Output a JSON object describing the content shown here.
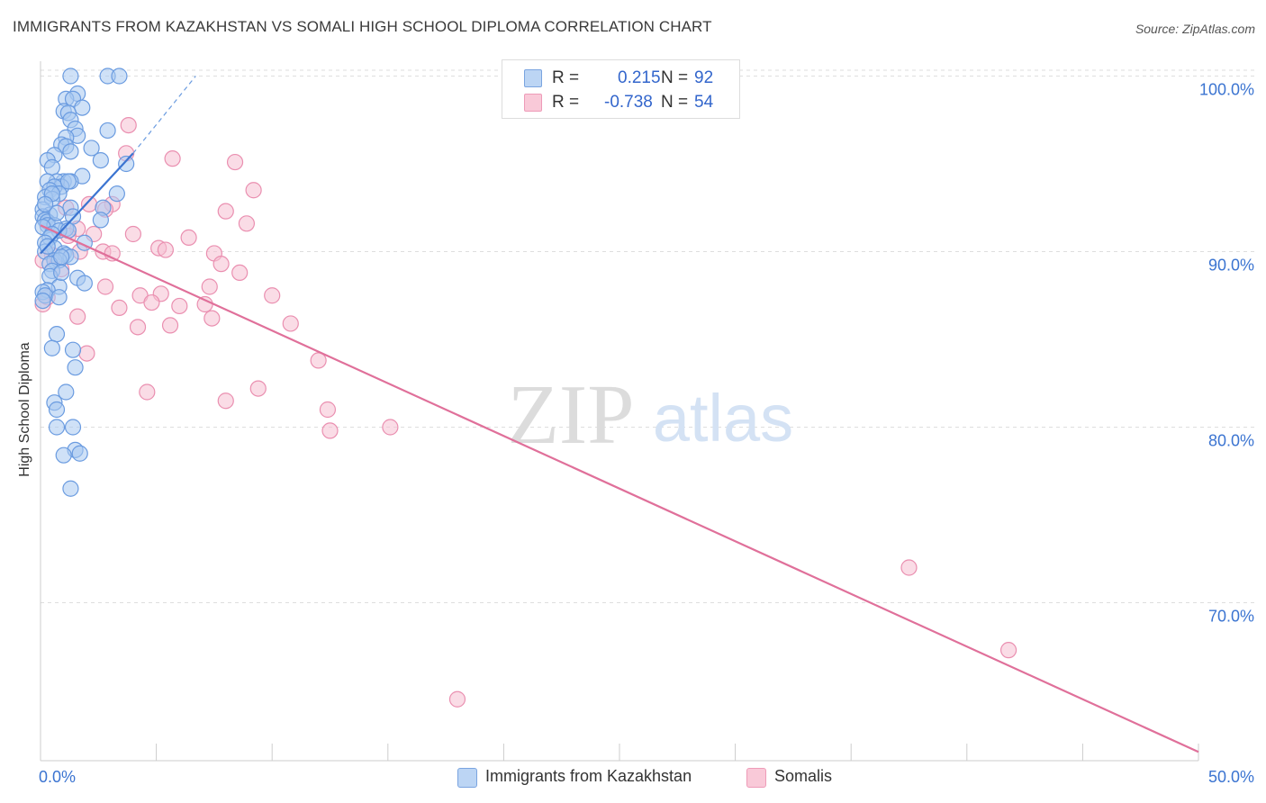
{
  "header": {
    "title": "IMMIGRANTS FROM KAZAKHSTAN VS SOMALI HIGH SCHOOL DIPLOMA CORRELATION CHART",
    "source": "Source: ZipAtlas.com"
  },
  "watermark": {
    "zip": "ZIP",
    "atlas": "atlas"
  },
  "legend": {
    "r_label": "R =",
    "n_label": "N =",
    "series": [
      {
        "r": "0.215",
        "n": "92"
      },
      {
        "r": "-0.738",
        "n": "54"
      }
    ]
  },
  "colors": {
    "blue_fill": "#a8c8f0",
    "blue_stroke": "#6a9be0",
    "blue_line": "#3b74d1",
    "pink_fill": "#f6bfd2",
    "pink_stroke": "#ea8fb0",
    "pink_line": "#e0709a",
    "tick_label": "#3b74d1",
    "grid": "#dedede"
  },
  "chart_data": {
    "type": "scatter",
    "title": "IMMIGRANTS FROM KAZAKHSTAN VS SOMALI HIGH SCHOOL DIPLOMA CORRELATION CHART",
    "ylabel": "High School Diploma",
    "xlim": [
      0,
      50
    ],
    "ylim": [
      61,
      101
    ],
    "x_tick_labels": [
      "0.0%",
      "50.0%"
    ],
    "y_ticks": [
      {
        "value": 100,
        "label": "100.0%"
      },
      {
        "value": 90,
        "label": "90.0%"
      },
      {
        "value": 80,
        "label": "80.0%"
      },
      {
        "value": 70,
        "label": "70.0%"
      }
    ],
    "grid": "horizontal dashed",
    "legend_position": "top-center",
    "series": [
      {
        "name": "Immigrants from Kazakhstan",
        "r": 0.215,
        "n": 92,
        "trend": {
          "x": [
            0,
            4.0
          ],
          "y": [
            89.9,
            95.6
          ],
          "dashed_to": {
            "x": 6.7,
            "y": 100.0
          }
        },
        "points": [
          [
            1.3,
            100.0
          ],
          [
            2.9,
            100.0
          ],
          [
            3.4,
            100.0
          ],
          [
            1.6,
            99.0
          ],
          [
            1.1,
            98.7
          ],
          [
            1.4,
            98.7
          ],
          [
            1.8,
            98.2
          ],
          [
            1.0,
            98.0
          ],
          [
            1.2,
            97.9
          ],
          [
            1.3,
            97.5
          ],
          [
            1.5,
            97.0
          ],
          [
            2.9,
            96.9
          ],
          [
            1.6,
            96.6
          ],
          [
            1.1,
            96.5
          ],
          [
            0.9,
            96.1
          ],
          [
            1.1,
            96.0
          ],
          [
            2.2,
            95.9
          ],
          [
            1.3,
            95.7
          ],
          [
            0.6,
            95.5
          ],
          [
            2.6,
            95.2
          ],
          [
            3.7,
            95.0
          ],
          [
            0.3,
            95.2
          ],
          [
            0.5,
            94.8
          ],
          [
            1.8,
            94.3
          ],
          [
            1.0,
            94.0
          ],
          [
            1.3,
            94.0
          ],
          [
            0.7,
            94.0
          ],
          [
            0.3,
            94.0
          ],
          [
            0.9,
            93.7
          ],
          [
            0.6,
            93.7
          ],
          [
            0.4,
            93.5
          ],
          [
            0.8,
            93.3
          ],
          [
            3.3,
            93.3
          ],
          [
            0.2,
            93.1
          ],
          [
            0.5,
            93.0
          ],
          [
            2.7,
            92.5
          ],
          [
            1.3,
            92.5
          ],
          [
            0.1,
            92.4
          ],
          [
            0.4,
            92.1
          ],
          [
            1.4,
            92.0
          ],
          [
            0.1,
            92.0
          ],
          [
            0.2,
            91.8
          ],
          [
            0.3,
            91.7
          ],
          [
            2.6,
            91.8
          ],
          [
            0.3,
            91.5
          ],
          [
            0.6,
            91.5
          ],
          [
            0.1,
            91.4
          ],
          [
            1.1,
            91.3
          ],
          [
            0.8,
            91.2
          ],
          [
            1.2,
            91.2
          ],
          [
            0.5,
            91.0
          ],
          [
            0.4,
            90.8
          ],
          [
            1.9,
            90.5
          ],
          [
            0.2,
            90.5
          ],
          [
            0.6,
            90.2
          ],
          [
            0.2,
            90.0
          ],
          [
            1.0,
            89.9
          ],
          [
            1.1,
            89.8
          ],
          [
            1.3,
            89.7
          ],
          [
            0.6,
            89.5
          ],
          [
            0.8,
            89.5
          ],
          [
            0.4,
            89.3
          ],
          [
            0.5,
            88.9
          ],
          [
            0.4,
            88.6
          ],
          [
            1.6,
            88.5
          ],
          [
            1.9,
            88.2
          ],
          [
            0.8,
            88.0
          ],
          [
            0.3,
            87.8
          ],
          [
            0.1,
            87.7
          ],
          [
            0.2,
            87.5
          ],
          [
            0.8,
            87.4
          ],
          [
            0.1,
            87.2
          ],
          [
            0.7,
            85.3
          ],
          [
            0.5,
            84.5
          ],
          [
            1.4,
            84.4
          ],
          [
            1.5,
            83.4
          ],
          [
            1.1,
            82.0
          ],
          [
            0.6,
            81.4
          ],
          [
            0.7,
            81.0
          ],
          [
            1.4,
            80.0
          ],
          [
            0.7,
            80.0
          ],
          [
            1.5,
            78.7
          ],
          [
            1.7,
            78.5
          ],
          [
            1.0,
            78.4
          ],
          [
            1.3,
            76.5
          ],
          [
            0.9,
            89.7
          ],
          [
            0.3,
            90.3
          ],
          [
            0.7,
            92.2
          ],
          [
            1.2,
            94.0
          ],
          [
            0.5,
            93.3
          ],
          [
            0.2,
            92.7
          ],
          [
            0.9,
            88.8
          ]
        ]
      },
      {
        "name": "Somalis",
        "r": -0.738,
        "n": 54,
        "trend": {
          "x": [
            0,
            50
          ],
          "y": [
            91.5,
            61.5
          ]
        },
        "points": [
          [
            3.8,
            97.2
          ],
          [
            3.7,
            95.6
          ],
          [
            5.7,
            95.3
          ],
          [
            8.4,
            95.1
          ],
          [
            9.2,
            93.5
          ],
          [
            3.1,
            92.7
          ],
          [
            2.1,
            92.7
          ],
          [
            1.1,
            92.5
          ],
          [
            2.8,
            92.4
          ],
          [
            8.0,
            92.3
          ],
          [
            8.9,
            91.6
          ],
          [
            1.6,
            91.3
          ],
          [
            2.3,
            91.0
          ],
          [
            4.0,
            91.0
          ],
          [
            6.4,
            90.8
          ],
          [
            5.1,
            90.2
          ],
          [
            5.4,
            90.1
          ],
          [
            2.7,
            90.0
          ],
          [
            1.7,
            90.0
          ],
          [
            7.5,
            89.9
          ],
          [
            3.1,
            89.9
          ],
          [
            0.5,
            89.8
          ],
          [
            7.8,
            89.3
          ],
          [
            0.9,
            89.0
          ],
          [
            0.1,
            89.5
          ],
          [
            8.6,
            88.8
          ],
          [
            2.8,
            88.0
          ],
          [
            7.3,
            88.0
          ],
          [
            4.3,
            87.5
          ],
          [
            5.2,
            87.6
          ],
          [
            10.0,
            87.5
          ],
          [
            0.3,
            87.4
          ],
          [
            4.8,
            87.1
          ],
          [
            3.4,
            86.8
          ],
          [
            6.0,
            86.9
          ],
          [
            7.1,
            87.0
          ],
          [
            1.6,
            86.3
          ],
          [
            7.4,
            86.2
          ],
          [
            10.8,
            85.9
          ],
          [
            5.6,
            85.8
          ],
          [
            4.2,
            85.7
          ],
          [
            2.0,
            84.2
          ],
          [
            12.0,
            83.8
          ],
          [
            0.1,
            87.0
          ],
          [
            9.4,
            82.2
          ],
          [
            4.6,
            82.0
          ],
          [
            8.0,
            81.5
          ],
          [
            12.4,
            81.0
          ],
          [
            12.5,
            79.8
          ],
          [
            15.1,
            80.0
          ],
          [
            37.5,
            72.0
          ],
          [
            41.8,
            67.3
          ],
          [
            18.0,
            64.5
          ],
          [
            1.2,
            90.9
          ]
        ]
      }
    ]
  },
  "bottom_legend": {
    "items": [
      "Immigrants from Kazakhstan",
      "Somalis"
    ]
  }
}
